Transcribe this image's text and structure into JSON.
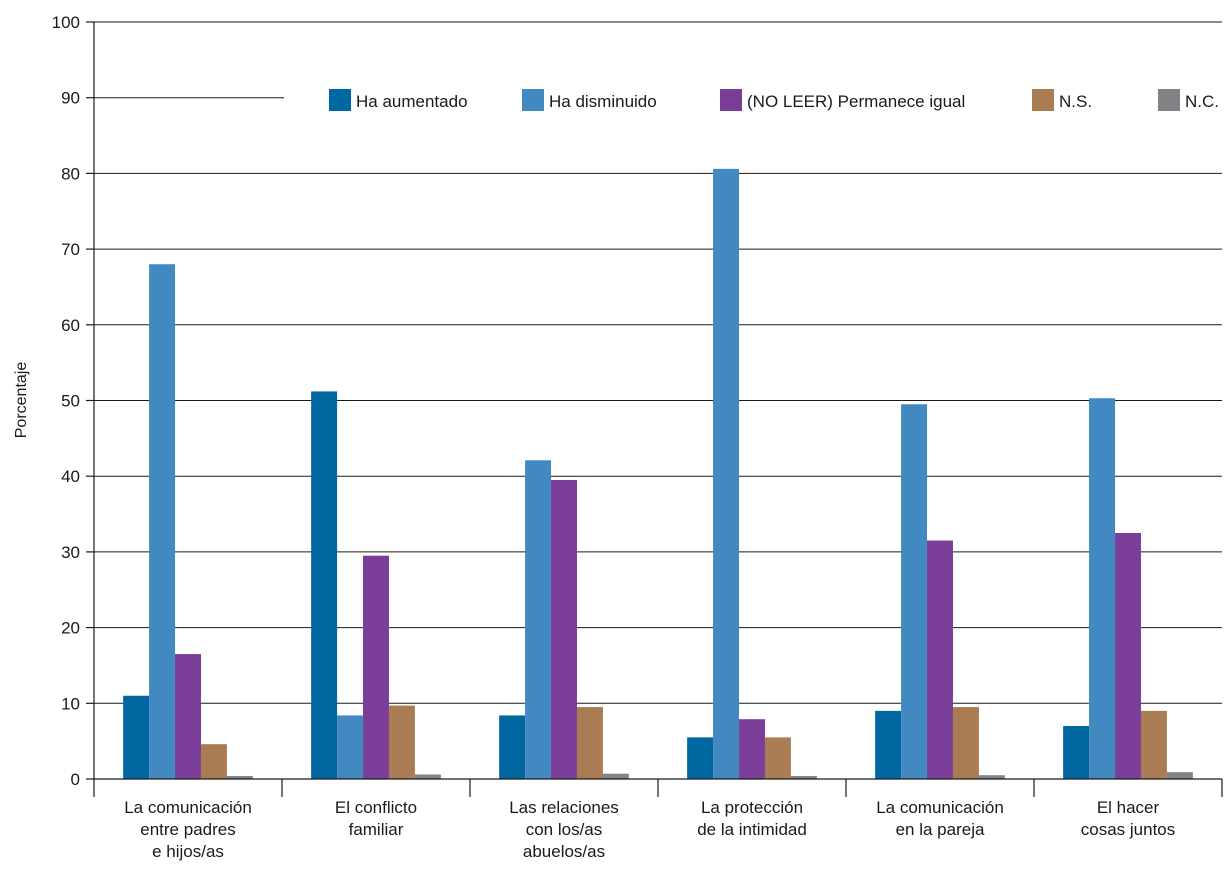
{
  "chart_data": {
    "type": "bar",
    "title": "",
    "xlabel": "",
    "ylabel": "Porcentaje",
    "ylim": [
      0,
      100
    ],
    "yticks": [
      0,
      10,
      20,
      30,
      40,
      50,
      60,
      70,
      80,
      90,
      100
    ],
    "grid": true,
    "legend_position": "top-right",
    "categories": [
      [
        "La comunicación",
        "entre padres",
        "e hijos/as"
      ],
      [
        "El conflicto",
        "familiar"
      ],
      [
        "Las relaciones",
        "con los/as",
        "abuelos/as"
      ],
      [
        "La protección",
        "de la intimidad"
      ],
      [
        "La comunicación",
        "en la pareja"
      ],
      [
        "El hacer",
        "cosas juntos"
      ]
    ],
    "series": [
      {
        "name": "Ha aumentado",
        "color": "#0067a0",
        "values": [
          11.0,
          51.2,
          8.4,
          5.5,
          9.0,
          7.0
        ]
      },
      {
        "name": "Ha disminuido",
        "color": "#4189c0",
        "values": [
          68.0,
          8.4,
          42.1,
          80.6,
          49.5,
          50.3
        ]
      },
      {
        "name": "(NO LEER) Permanece igual",
        "color": "#7b3e98",
        "values": [
          16.5,
          29.5,
          39.5,
          7.9,
          31.5,
          32.5
        ]
      },
      {
        "name": "N.S.",
        "color": "#aa7c53",
        "values": [
          4.6,
          9.7,
          9.5,
          5.5,
          9.5,
          9.0
        ]
      },
      {
        "name": "N.C.",
        "color": "#808285",
        "values": [
          0.4,
          0.6,
          0.7,
          0.4,
          0.5,
          0.9
        ]
      }
    ]
  }
}
